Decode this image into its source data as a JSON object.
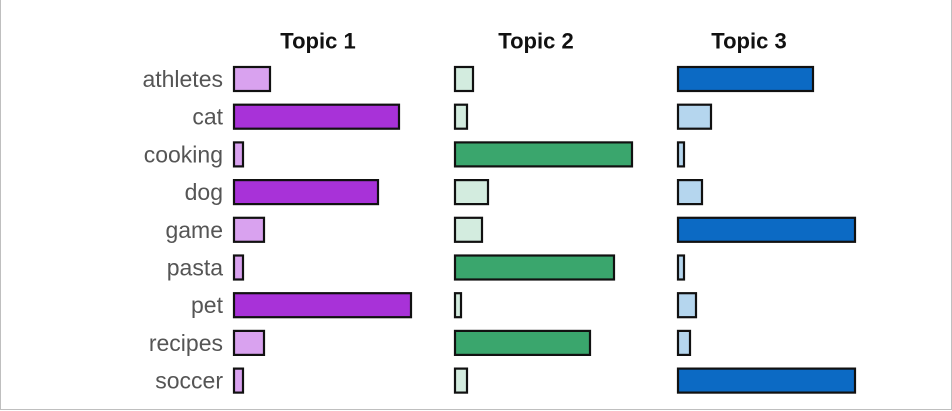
{
  "chart_data": {
    "type": "bar",
    "orientation": "horizontal",
    "layout": "small-multiples",
    "categories": [
      "athletes",
      "cat",
      "cooking",
      "dog",
      "game",
      "pasta",
      "pet",
      "recipes",
      "soccer"
    ],
    "series": [
      {
        "name": "Topic 1",
        "values": [
          0.12,
          0.55,
          0.03,
          0.48,
          0.1,
          0.03,
          0.59,
          0.1,
          0.03
        ],
        "colors": {
          "high": "#a832d8",
          "low": "#d9a2ef"
        }
      },
      {
        "name": "Topic 2",
        "values": [
          0.06,
          0.04,
          0.59,
          0.11,
          0.09,
          0.53,
          0.02,
          0.45,
          0.04
        ],
        "colors": {
          "high": "#3aa66d",
          "low": "#d3ecdf"
        }
      },
      {
        "name": "Topic 3",
        "values": [
          0.45,
          0.11,
          0.02,
          0.08,
          0.59,
          0.02,
          0.06,
          0.04,
          0.59
        ],
        "colors": {
          "high": "#0c6ac4",
          "low": "#b5d6ee"
        }
      }
    ],
    "xlim": [
      0,
      0.6
    ],
    "grid": false,
    "legend": "none"
  }
}
